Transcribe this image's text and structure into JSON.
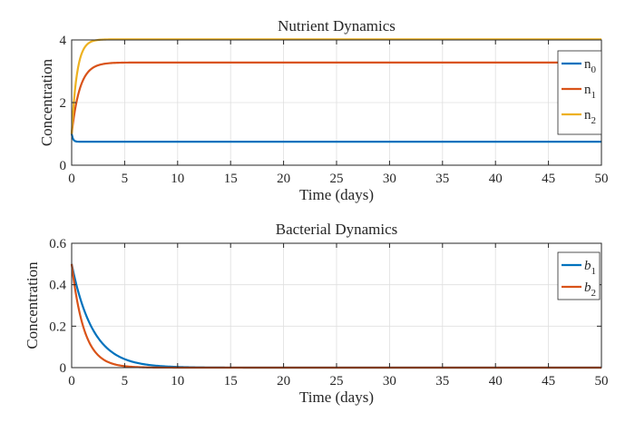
{
  "chart_data": [
    {
      "type": "line",
      "title": "Nutrient Dynamics",
      "xlabel": "Time (days)",
      "ylabel": "Concentration",
      "xlim": [
        0,
        50
      ],
      "ylim": [
        0,
        4
      ],
      "xticks": [
        0,
        5,
        10,
        15,
        20,
        25,
        30,
        35,
        40,
        45,
        50
      ],
      "yticks": [
        0,
        2,
        4
      ],
      "grid": true,
      "legend_position": "top-right",
      "series": [
        {
          "name": "n",
          "sub": "0",
          "italic": false,
          "color": "#0072BD",
          "start": 1.0,
          "end": 0.75,
          "rate": 8.0
        },
        {
          "name": "n",
          "sub": "1",
          "italic": false,
          "color": "#D95319",
          "start": 1.0,
          "end": 3.28,
          "rate": 1.3
        },
        {
          "name": "n",
          "sub": "2",
          "italic": false,
          "color": "#EDB120",
          "start": 1.0,
          "end": 4.02,
          "rate": 2.0
        }
      ]
    },
    {
      "type": "line",
      "title": "Bacterial Dynamics",
      "xlabel": "Time (days)",
      "ylabel": "Concentration",
      "xlim": [
        0,
        50
      ],
      "ylim": [
        0,
        0.6
      ],
      "xticks": [
        0,
        5,
        10,
        15,
        20,
        25,
        30,
        35,
        40,
        45,
        50
      ],
      "yticks": [
        0,
        0.2,
        0.4,
        0.6
      ],
      "grid": true,
      "legend_position": "top-right",
      "series": [
        {
          "name": "b",
          "sub": "1",
          "italic": true,
          "color": "#0072BD",
          "start": 0.5,
          "end": 0.0,
          "rate": 0.5
        },
        {
          "name": "b",
          "sub": "2",
          "italic": true,
          "color": "#D95319",
          "start": 0.5,
          "end": 0.0,
          "rate": 0.85
        }
      ]
    }
  ]
}
